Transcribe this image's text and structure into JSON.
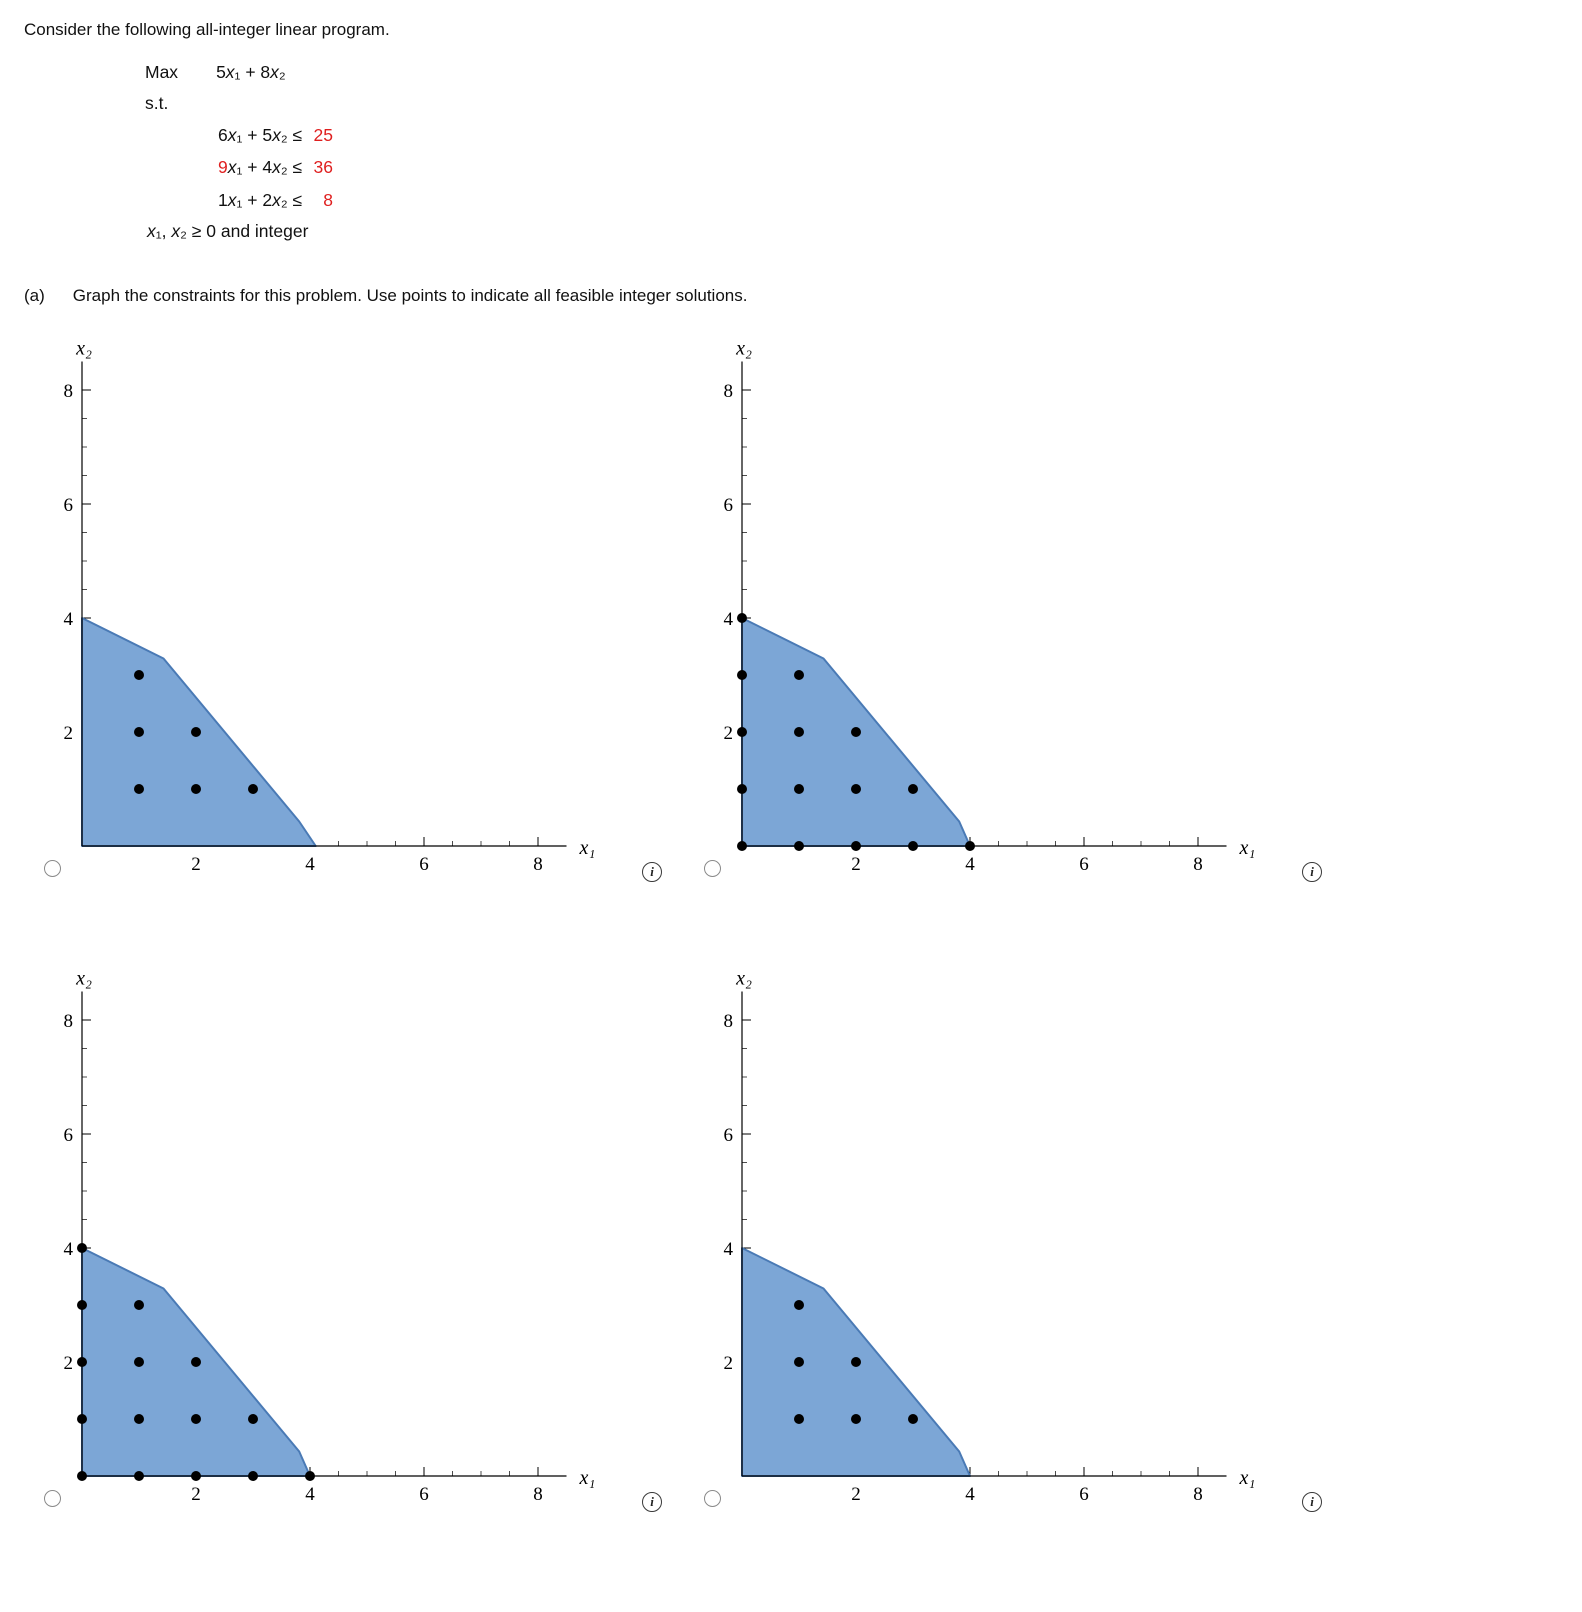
{
  "intro": "Consider the following all-integer linear program.",
  "colors": {
    "highlight": "#df1f1f",
    "region_fill": "#7ca6d6",
    "region_stroke": "#4a7ab5",
    "point": "#000000"
  },
  "program": {
    "objective_label": "Max",
    "objective": "5x₁ + 8x₂",
    "st_label": "s.t.",
    "constraints": [
      {
        "segments": [
          {
            "text": "6x₁ + 5x₂ ≤ ",
            "red": false
          },
          {
            "text": "25",
            "red": true
          }
        ]
      },
      {
        "segments": [
          {
            "text": "9",
            "red": true
          },
          {
            "text": "x₁ + 4x₂ ≤ ",
            "red": false
          },
          {
            "text": "36",
            "red": true
          }
        ]
      },
      {
        "segments": [
          {
            "text": "1x₁ + 2x₂ ≤ ",
            "red": false
          },
          {
            "text": "8",
            "red": true
          }
        ]
      }
    ],
    "nonneg": "x₁, x₂ ≥ 0 and integer"
  },
  "part_a": {
    "label": "(a)",
    "text": "Graph the constraints for this problem. Use points to indicate all feasible integer solutions."
  },
  "info_icon_glyph": "i",
  "answer_options": [
    {
      "id": "option-1",
      "selected": false
    },
    {
      "id": "option-2",
      "selected": false
    },
    {
      "id": "option-3",
      "selected": false
    },
    {
      "id": "option-4",
      "selected": false
    }
  ],
  "chart_axes": {
    "xlabel": "x₁",
    "ylabel": "x₂",
    "xlim": [
      0,
      8.5
    ],
    "ylim": [
      0,
      8.5
    ],
    "major_ticks": [
      2,
      4,
      6,
      8
    ],
    "minor_tick_step": 0.5,
    "grid": false,
    "legend": false
  },
  "chart_data": [
    {
      "type": "area",
      "option_id": "option-1",
      "region_vertices": [
        [
          0,
          0
        ],
        [
          0,
          4
        ],
        [
          1.43,
          3.29
        ],
        [
          3.81,
          0.43
        ],
        [
          4.1,
          0
        ]
      ],
      "feasible_points": [
        [
          1,
          1
        ],
        [
          2,
          1
        ],
        [
          3,
          1
        ],
        [
          1,
          2
        ],
        [
          2,
          2
        ],
        [
          1,
          3
        ]
      ]
    },
    {
      "type": "area",
      "option_id": "option-2",
      "region_vertices": [
        [
          0,
          0
        ],
        [
          0,
          4
        ],
        [
          1.43,
          3.29
        ],
        [
          3.81,
          0.43
        ],
        [
          4,
          0
        ]
      ],
      "feasible_points": [
        [
          0,
          0
        ],
        [
          1,
          0
        ],
        [
          2,
          0
        ],
        [
          3,
          0
        ],
        [
          4,
          0
        ],
        [
          0,
          1
        ],
        [
          1,
          1
        ],
        [
          2,
          1
        ],
        [
          3,
          1
        ],
        [
          0,
          2
        ],
        [
          1,
          2
        ],
        [
          2,
          2
        ],
        [
          0,
          3
        ],
        [
          1,
          3
        ],
        [
          0,
          4
        ]
      ]
    },
    {
      "type": "area",
      "option_id": "option-3",
      "region_vertices": [
        [
          0,
          0
        ],
        [
          0,
          4
        ],
        [
          1.43,
          3.29
        ],
        [
          3.81,
          0.43
        ],
        [
          4,
          0
        ]
      ],
      "feasible_points": [
        [
          0,
          0
        ],
        [
          1,
          0
        ],
        [
          2,
          0
        ],
        [
          3,
          0
        ],
        [
          4,
          0
        ],
        [
          0,
          1
        ],
        [
          1,
          1
        ],
        [
          2,
          1
        ],
        [
          3,
          1
        ],
        [
          0,
          2
        ],
        [
          1,
          2
        ],
        [
          2,
          2
        ],
        [
          0,
          3
        ],
        [
          1,
          3
        ],
        [
          0,
          4
        ]
      ]
    },
    {
      "type": "area",
      "option_id": "option-4",
      "region_vertices": [
        [
          0,
          0
        ],
        [
          0,
          4
        ],
        [
          1.43,
          3.29
        ],
        [
          3.81,
          0.43
        ],
        [
          4,
          0
        ]
      ],
      "feasible_points": [
        [
          1,
          1
        ],
        [
          2,
          1
        ],
        [
          3,
          1
        ],
        [
          1,
          2
        ],
        [
          2,
          2
        ],
        [
          1,
          3
        ]
      ]
    }
  ]
}
